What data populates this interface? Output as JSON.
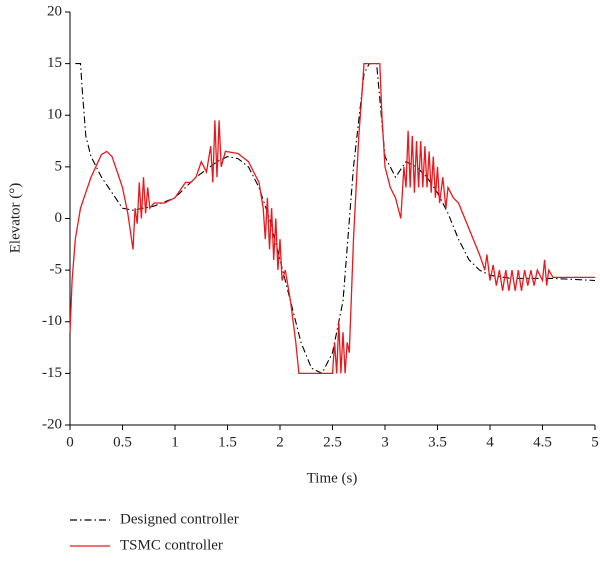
{
  "chart_data": {
    "type": "line",
    "xlabel": "Time (s)",
    "ylabel": "Elevator (°)",
    "xlim": [
      0,
      5
    ],
    "ylim": [
      -20,
      20
    ],
    "xticks": [
      0,
      0.5,
      1,
      1.5,
      2,
      2.5,
      3,
      3.5,
      4,
      4.5,
      5
    ],
    "yticks": [
      -20,
      -15,
      -10,
      -5,
      0,
      5,
      10,
      15,
      20
    ],
    "series": [
      {
        "name": "Designed controller",
        "color": "#000000",
        "dash": "dashdot",
        "x": [
          0.05,
          0.1,
          0.12,
          0.15,
          0.2,
          0.3,
          0.4,
          0.5,
          0.6,
          0.7,
          0.8,
          1.0,
          1.2,
          1.4,
          1.5,
          1.6,
          1.7,
          1.8,
          1.9,
          2.0,
          2.1,
          2.2,
          2.3,
          2.4,
          2.5,
          2.6,
          2.7,
          2.8,
          2.85,
          2.92,
          3.0,
          3.1,
          3.2,
          3.3,
          3.4,
          3.5,
          3.6,
          3.7,
          3.8,
          3.9,
          4.0,
          4.2,
          4.4,
          4.6,
          5.0
        ],
        "values": [
          15,
          15,
          12,
          8,
          6,
          4,
          2.5,
          1,
          0.8,
          1,
          1.2,
          2,
          4,
          5.5,
          6,
          5.8,
          5,
          3,
          0,
          -4,
          -8,
          -12,
          -14.5,
          -15,
          -13,
          -8,
          5,
          14,
          15,
          15,
          6,
          4,
          5.5,
          5,
          4,
          2.5,
          0.5,
          -2,
          -4,
          -5,
          -5.5,
          -5.8,
          -5.8,
          -5.8,
          -6
        ]
      },
      {
        "name": "TSMC controller",
        "color": "#e8191e",
        "dash": "solid",
        "x": [
          0,
          0.02,
          0.05,
          0.1,
          0.2,
          0.3,
          0.35,
          0.4,
          0.45,
          0.5,
          0.55,
          0.6,
          0.62,
          0.64,
          0.66,
          0.68,
          0.7,
          0.72,
          0.74,
          0.76,
          0.8,
          0.9,
          1.0,
          1.1,
          1.15,
          1.2,
          1.25,
          1.3,
          1.34,
          1.36,
          1.38,
          1.4,
          1.42,
          1.44,
          1.48,
          1.6,
          1.7,
          1.8,
          1.84,
          1.86,
          1.88,
          1.9,
          1.92,
          1.94,
          1.96,
          1.98,
          2.0,
          2.02,
          2.05,
          2.1,
          2.15,
          2.18,
          2.4,
          2.5,
          2.52,
          2.54,
          2.56,
          2.58,
          2.6,
          2.62,
          2.64,
          2.66,
          2.7,
          2.75,
          2.78,
          2.8,
          2.95,
          2.97,
          3.0,
          3.05,
          3.1,
          3.15,
          3.18,
          3.2,
          3.22,
          3.24,
          3.26,
          3.28,
          3.3,
          3.32,
          3.34,
          3.36,
          3.38,
          3.4,
          3.42,
          3.44,
          3.46,
          3.48,
          3.5,
          3.52,
          3.55,
          3.58,
          3.6,
          3.65,
          3.7,
          3.8,
          3.9,
          3.95,
          3.97,
          4.0,
          4.03,
          4.06,
          4.09,
          4.12,
          4.15,
          4.18,
          4.21,
          4.24,
          4.27,
          4.3,
          4.33,
          4.36,
          4.39,
          4.42,
          4.45,
          4.5,
          4.52,
          4.54,
          4.56,
          4.6,
          5.0
        ],
        "values": [
          -11,
          -6,
          -2,
          1,
          4,
          6.2,
          6.5,
          6,
          4.5,
          3,
          0.5,
          -3,
          1,
          -0.5,
          3.5,
          0,
          4,
          0.5,
          3,
          1,
          1.5,
          1.5,
          2,
          3.5,
          3.5,
          4,
          5.5,
          4.5,
          7,
          3.5,
          9.5,
          4,
          9.5,
          5,
          6.5,
          6.3,
          5.5,
          3.5,
          1,
          -2,
          2,
          -3,
          1,
          -4,
          0,
          -5,
          -2,
          -6,
          -5,
          -8,
          -12,
          -15,
          -15,
          -15,
          -12,
          -15,
          -10,
          -15,
          -11,
          -15,
          -12,
          -13,
          -2,
          8,
          12,
          15,
          15,
          10,
          5,
          3,
          2,
          0,
          5,
          3,
          8.5,
          3,
          8,
          2.5,
          7.5,
          3,
          7.5,
          3,
          7,
          3,
          6.5,
          2.5,
          6,
          2,
          5,
          1.5,
          4,
          1,
          3,
          2,
          1.5,
          -1,
          -3.5,
          -5,
          -3.5,
          -6,
          -4.5,
          -6.5,
          -5,
          -7,
          -5,
          -7,
          -5,
          -7,
          -5,
          -7,
          -5,
          -6.5,
          -5,
          -6.5,
          -5,
          -6,
          -4,
          -6.5,
          -5,
          -5.7,
          -5.7
        ]
      }
    ]
  }
}
